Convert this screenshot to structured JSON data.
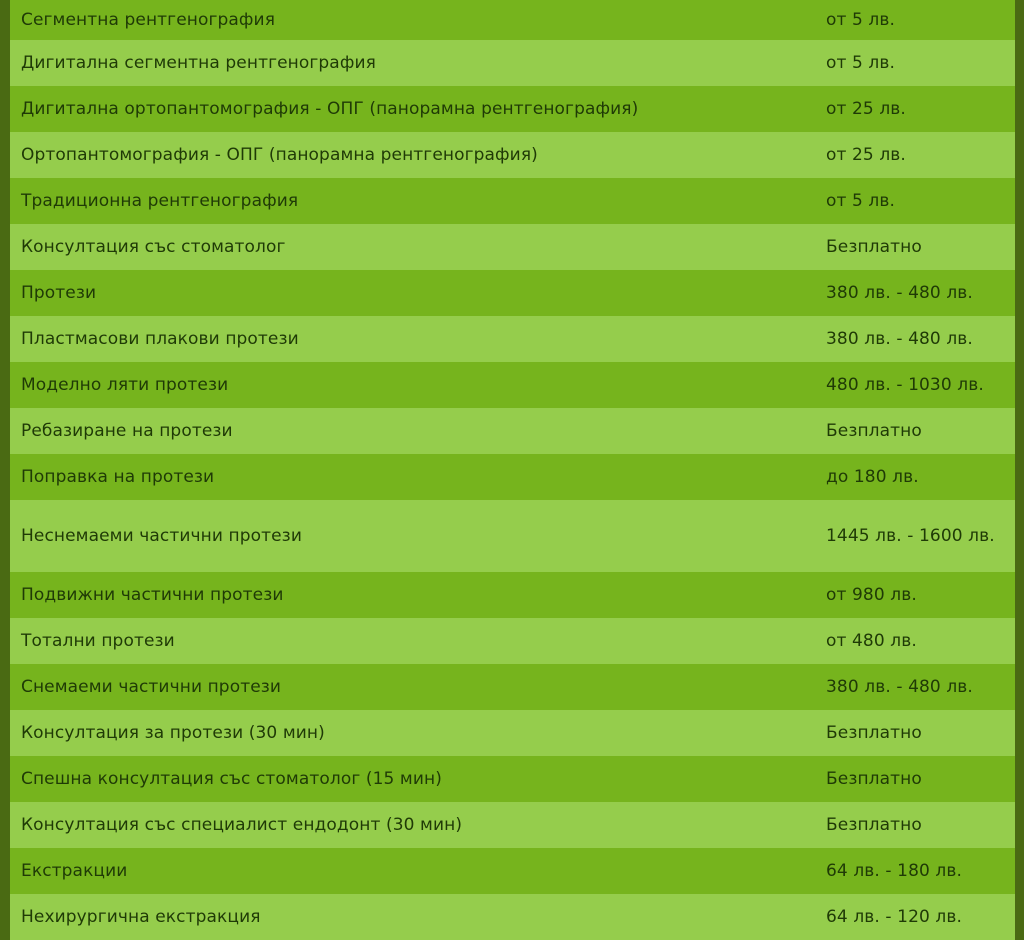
{
  "price_list": {
    "rows": [
      {
        "name": "Сегментна рентгенография",
        "price": "от 5 лв."
      },
      {
        "name": "Дигитална сегментна рентгенография",
        "price": "от 5 лв."
      },
      {
        "name": "Дигитална ортопантомография - ОПГ (панорамна рентгенография)",
        "price": "от 25 лв."
      },
      {
        "name": "Ортопантомография - ОПГ (панорамна рентгенография)",
        "price": "от 25 лв."
      },
      {
        "name": "Традиционна рентгенография",
        "price": "от 5 лв."
      },
      {
        "name": "Консултация със стоматолог",
        "price": "Безплатно"
      },
      {
        "name": "Протези",
        "price": "380 лв. - 480 лв."
      },
      {
        "name": "Пластмасови плакови протези",
        "price": "380 лв. - 480 лв."
      },
      {
        "name": "Моделно ляти протези",
        "price": "480 лв. - 1030 лв."
      },
      {
        "name": "Ребазиране на протези",
        "price": "Безплатно"
      },
      {
        "name": "Поправка на протези",
        "price": "до 180 лв."
      },
      {
        "name": "Неснемаеми частични протези",
        "price": "1445 лв. - 1600 лв."
      },
      {
        "name": "Подвижни частични протези",
        "price": "от 980 лв."
      },
      {
        "name": "Тотални протези",
        "price": "от 480 лв."
      },
      {
        "name": "Снемаеми частични протези",
        "price": "380 лв. - 480 лв."
      },
      {
        "name": "Консултация за протези (30 мин)",
        "price": "Безплатно"
      },
      {
        "name": "Спешна консултация със стоматолог (15 мин)",
        "price": "Безплатно"
      },
      {
        "name": "Консултация със специалист ендодонт (30 мин)",
        "price": "Безплатно"
      },
      {
        "name": "Екстракции",
        "price": "64 лв. - 180 лв."
      },
      {
        "name": "Нехирургична екстракция",
        "price": "64 лв. - 120 лв."
      }
    ]
  }
}
